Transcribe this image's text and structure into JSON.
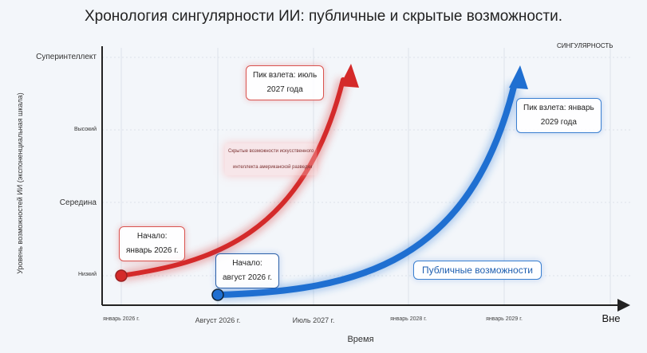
{
  "title": "Хронология сингулярности ИИ: публичные и скрытые возможности.",
  "chart_data": {
    "type": "line",
    "title": "Хронология сингулярности ИИ: публичные и скрытые возможности.",
    "xlabel": "Время",
    "ylabel": "Уровень возможностей ИИ (экспоненциальная шкала)",
    "x_ticks": [
      "январь 2026 г.",
      "Август 2026 г.",
      "Июль 2027 г.",
      "январь 2028 г.",
      "январь 2029 г.",
      "Вне"
    ],
    "y_ticks": [
      "Низкий",
      "Середина",
      "Высокий",
      "Суперинтеллект"
    ],
    "singularity_label": "СИНГУЛЯРНОСТЬ",
    "grid": true,
    "series": [
      {
        "name": "Скрытые возможности искусственного интеллекта американской разведки",
        "color": "#d42a2a",
        "start": "январь 2026 г.",
        "peak": "июль 2027"
      },
      {
        "name": "Публичные возможности",
        "color": "#1f6fd1",
        "start": "август 2026 г.",
        "peak": "январь 2029"
      }
    ],
    "annotations": {
      "red_start": [
        "Начало:",
        "январь 2026 г."
      ],
      "red_peak": [
        "Пик взлета: июль",
        "2027 года"
      ],
      "red_label": [
        "Скрытые возможности искусственного",
        "интеллекта американской разведки"
      ],
      "blue_start": [
        "Начало:",
        "август 2026 г."
      ],
      "blue_peak": [
        "Пик взлета: январь",
        "2029 года"
      ],
      "blue_label": "Публичные возможности"
    }
  }
}
